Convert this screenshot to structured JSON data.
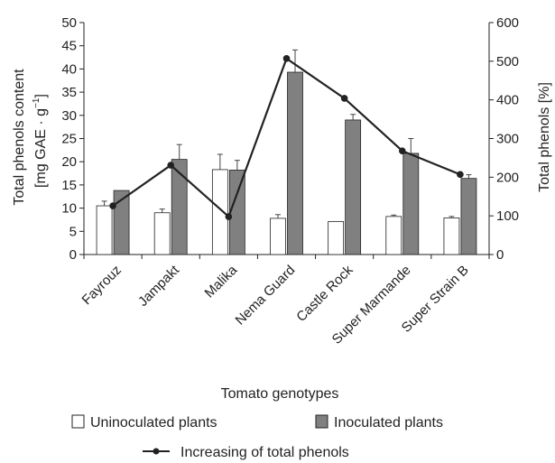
{
  "chart_data": {
    "type": "bar",
    "xlabel": "Tomato genotypes",
    "ylabel_left": [
      "Total phenols content",
      "[mg GAE · g",
      "]",
      "−1"
    ],
    "ylabel_right": "Total phenols [%]",
    "ylim": [
      0,
      50
    ],
    "ylim_right": [
      0,
      600
    ],
    "yticks": [
      "0",
      "5",
      "10",
      "15",
      "20",
      "25",
      "30",
      "35",
      "40",
      "45",
      "50"
    ],
    "yticks_right": [
      "0",
      "100",
      "200",
      "300",
      "400",
      "500",
      "600"
    ],
    "categories": [
      "Fayrouz",
      "Jampakt",
      "Malika",
      "Nema Guard",
      "Castle Rock",
      "Super Marmande",
      "Super Strain B"
    ],
    "series": [
      {
        "name": "Uninoculated plants",
        "axis": "left",
        "color": "#ffffff",
        "values": [
          10.5,
          9,
          18.3,
          7.8,
          7.1,
          8.2,
          7.9
        ],
        "errors": [
          1.0,
          0.8,
          3.3,
          0.8,
          0.0,
          0.3,
          0.3
        ]
      },
      {
        "name": "Inoculated plants",
        "axis": "left",
        "color": "#808080",
        "values": [
          13.8,
          20.5,
          18.2,
          39.3,
          29,
          21.8,
          16.4
        ],
        "errors": [
          0.0,
          3.2,
          2.1,
          4.8,
          1.2,
          3.2,
          0.8
        ]
      },
      {
        "name": "Increasing of total phenols",
        "axis": "right",
        "type": "line",
        "color": "#222222",
        "values": [
          126,
          231,
          98,
          507,
          404,
          268,
          207
        ]
      }
    ]
  }
}
